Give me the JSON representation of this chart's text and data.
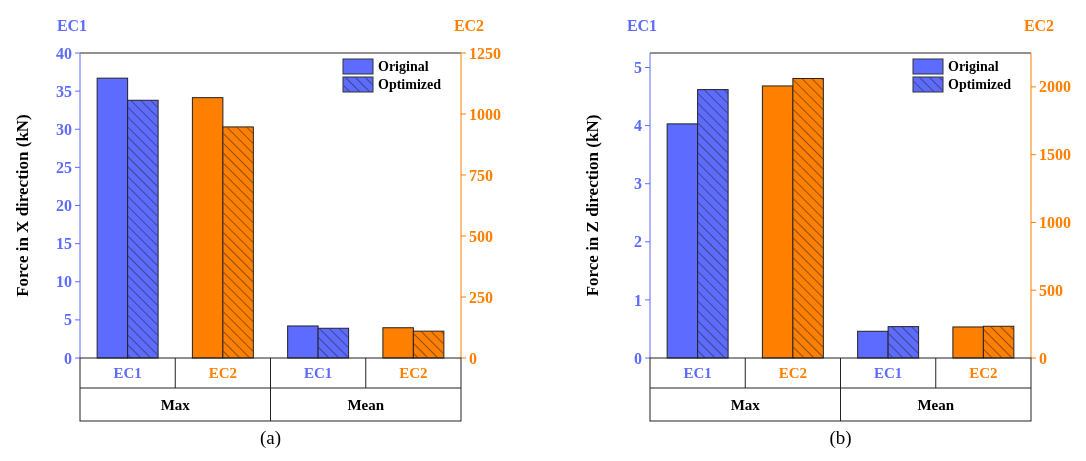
{
  "chart_data": [
    {
      "type": "bar",
      "title": "(a)",
      "ylabel": "Force in X direction (kN)",
      "y2label": "EC2",
      "categories": [
        "EC1",
        "EC2",
        "EC1",
        "EC2"
      ],
      "series": [
        {
          "name": "Original",
          "color": "#5e6bff",
          "axis": "y",
          "values": [
            36.7,
            null,
            4.2,
            null
          ]
        },
        {
          "name": "Optimized",
          "color": "#5e6bff",
          "axis": "y",
          "values": [
            33.8,
            null,
            3.9,
            null
          ]
        },
        {
          "color": "#ff7f00",
          "axis": "y2",
          "values": [
            null,
            1067,
            null,
            124
          ]
        },
        {
          "color": "#ff7f00",
          "axis": "y2",
          "values": [
            null,
            947,
            null,
            110
          ]
        }
      ],
      "ylim": [
        0,
        40
      ],
      "yticks": [
        0,
        5,
        10,
        15,
        20,
        25,
        30,
        35,
        40
      ],
      "y2lim": [
        0,
        1250
      ],
      "y2ticks": [
        0,
        250,
        500,
        750,
        1000,
        1250
      ],
      "annotations": [
        "EC1",
        "Max",
        "Mean"
      ],
      "legend": "top right"
    },
    {
      "type": "bar",
      "title": "(b)",
      "ylabel": "Force in Z direction (kN)",
      "y2label": "EC2",
      "categories": [
        "EC1",
        "EC2",
        "EC1",
        "EC2"
      ],
      "series": [
        {
          "name": "Original",
          "color": "#5e6bff",
          "axis": "y",
          "values": [
            4.03,
            null,
            0.46,
            null
          ]
        },
        {
          "name": "Optimized",
          "color": "#5e6bff",
          "axis": "y",
          "values": [
            4.62,
            null,
            0.54,
            null
          ]
        },
        {
          "color": "#ff7f00",
          "axis": "y2",
          "values": [
            null,
            2007,
            null,
            229
          ]
        },
        {
          "color": "#ff7f00",
          "axis": "y2",
          "values": [
            null,
            2062,
            null,
            234
          ]
        }
      ],
      "ylim": [
        0,
        5.25
      ],
      "yticks": [
        0,
        1,
        2,
        3,
        4,
        5
      ],
      "y2lim": [
        0,
        2250
      ],
      "y2ticks": [
        0,
        500,
        1000,
        1500,
        2000
      ],
      "annotations": [
        "EC1",
        "Max",
        "Mean"
      ],
      "legend": "top right"
    }
  ]
}
